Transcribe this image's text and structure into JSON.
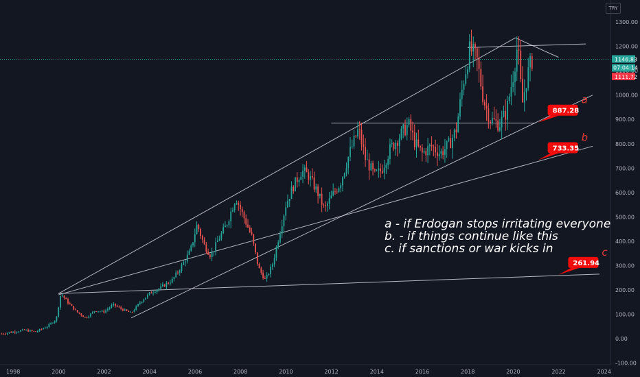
{
  "currency_label": "TRY",
  "colors": {
    "background": "#131722",
    "up": "#26a69a",
    "down": "#ef5350",
    "trendline": "#d1d4dc",
    "label_bg": "#f20c0c",
    "last_price": "#26a69a",
    "low_price": "#f23645"
  },
  "notes": {
    "line_a": "a - if Erdogan stops irritating everyone",
    "line_b": "b. - if things continue like this",
    "line_c": "c. if sanctions or war kicks in"
  },
  "price_labels": {
    "last": "1146.83",
    "countdown": "07:04:14",
    "low": "1111.72"
  },
  "chart_data": {
    "type": "candlestick",
    "x_ticks": [
      "1998",
      "2000",
      "2002",
      "2004",
      "2006",
      "2008",
      "2010",
      "2012",
      "2014",
      "2016",
      "2018",
      "2020",
      "2022",
      "2024"
    ],
    "y_ticks": [
      "1300.00",
      "1200.00",
      "1100.00",
      "1000.00",
      "900.00",
      "800.00",
      "700.00",
      "600.00",
      "500.00",
      "400.00",
      "300.00",
      "200.00",
      "100.00",
      "0.00",
      "-100.00"
    ],
    "ylim": [
      -100,
      1330
    ],
    "xlim": [
      1997.5,
      2024.5
    ],
    "grid": false,
    "price_path": [
      [
        1997.5,
        20
      ],
      [
        1998.5,
        35
      ],
      [
        1999.0,
        28
      ],
      [
        1999.5,
        50
      ],
      [
        1999.9,
        80
      ],
      [
        2000.1,
        185
      ],
      [
        2000.4,
        150
      ],
      [
        2000.8,
        110
      ],
      [
        2001.2,
        85
      ],
      [
        2001.6,
        115
      ],
      [
        2002.0,
        110
      ],
      [
        2002.4,
        140
      ],
      [
        2002.8,
        120
      ],
      [
        2003.2,
        105
      ],
      [
        2003.6,
        150
      ],
      [
        2004.0,
        185
      ],
      [
        2004.5,
        210
      ],
      [
        2005.0,
        240
      ],
      [
        2005.4,
        295
      ],
      [
        2005.8,
        360
      ],
      [
        2006.1,
        470
      ],
      [
        2006.4,
        385
      ],
      [
        2006.7,
        340
      ],
      [
        2007.0,
        400
      ],
      [
        2007.4,
        470
      ],
      [
        2007.8,
        580
      ],
      [
        2008.1,
        510
      ],
      [
        2008.5,
        420
      ],
      [
        2008.8,
        290
      ],
      [
        2009.1,
        240
      ],
      [
        2009.4,
        300
      ],
      [
        2009.7,
        420
      ],
      [
        2010.0,
        550
      ],
      [
        2010.3,
        620
      ],
      [
        2010.7,
        690
      ],
      [
        2011.0,
        670
      ],
      [
        2011.4,
        600
      ],
      [
        2011.7,
        530
      ],
      [
        2012.0,
        580
      ],
      [
        2012.4,
        640
      ],
      [
        2012.8,
        760
      ],
      [
        2013.2,
        860
      ],
      [
        2013.5,
        740
      ],
      [
        2013.9,
        670
      ],
      [
        2014.2,
        690
      ],
      [
        2014.6,
        780
      ],
      [
        2015.0,
        830
      ],
      [
        2015.4,
        880
      ],
      [
        2015.7,
        800
      ],
      [
        2016.0,
        760
      ],
      [
        2016.4,
        790
      ],
      [
        2016.8,
        760
      ],
      [
        2017.2,
        800
      ],
      [
        2017.5,
        860
      ],
      [
        2017.8,
        1050
      ],
      [
        2018.1,
        1190
      ],
      [
        2018.4,
        1150
      ],
      [
        2018.7,
        980
      ],
      [
        2019.0,
        900
      ],
      [
        2019.4,
        880
      ],
      [
        2019.7,
        930
      ],
      [
        2020.0,
        1080
      ],
      [
        2020.2,
        1210
      ],
      [
        2020.4,
        960
      ],
      [
        2020.6,
        1070
      ],
      [
        2020.8,
        1140
      ],
      [
        2020.9,
        1146.83
      ]
    ],
    "trendlines": [
      {
        "name": "upper channel",
        "points": [
          [
            2000.0,
            185
          ],
          [
            2020.1,
            1235
          ]
        ]
      },
      {
        "name": "top resistance",
        "points": [
          [
            2018.0,
            1195
          ],
          [
            2023.2,
            1210
          ]
        ]
      },
      {
        "name": "peak down",
        "points": [
          [
            2020.1,
            1235
          ],
          [
            2022.0,
            1155
          ]
        ]
      },
      {
        "name": "neckline",
        "points": [
          [
            2012.0,
            885
          ],
          [
            2021.0,
            885
          ]
        ]
      },
      {
        "name": "a support",
        "points": [
          [
            2003.2,
            85
          ],
          [
            2023.5,
            1000
          ]
        ]
      },
      {
        "name": "b support",
        "points": [
          [
            2000.0,
            180
          ],
          [
            2023.5,
            790
          ]
        ]
      },
      {
        "name": "c support",
        "points": [
          [
            2000.0,
            185
          ],
          [
            2023.8,
            265
          ]
        ]
      }
    ],
    "scenarios": [
      {
        "letter": "a",
        "value": "887.28",
        "anchor_x": 2021.1,
        "anchor_y": 887.28
      },
      {
        "letter": "b",
        "value": "733.35",
        "anchor_x": 2021.1,
        "anchor_y": 733.35
      },
      {
        "letter": "c",
        "value": "261.94",
        "anchor_x": 2022.0,
        "anchor_y": 261.94
      }
    ]
  }
}
